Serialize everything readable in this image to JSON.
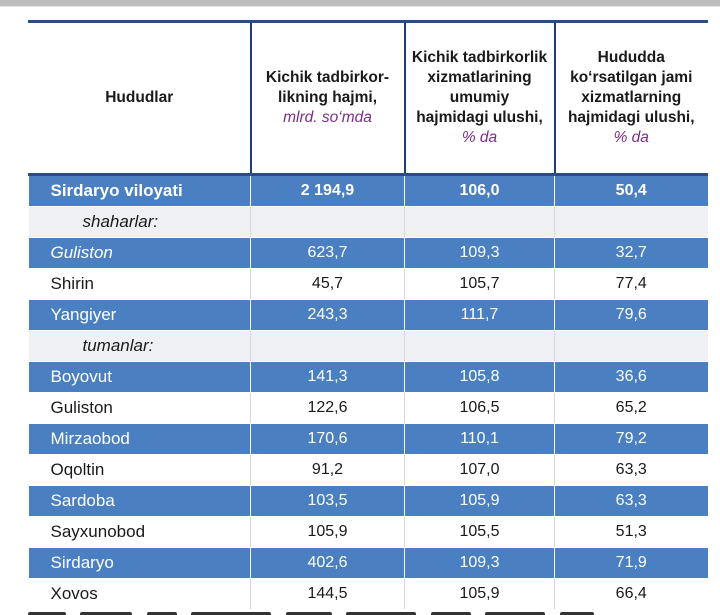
{
  "table": {
    "headers": [
      {
        "label": "Hududlar",
        "unit": ""
      },
      {
        "label": "Kichik tadbirkor-likning hajmi,",
        "unit": "mlrd. so‘mda"
      },
      {
        "label": "Kichik tadbirkorlik xizmatlarining umumiy hajmidagi ulushi,",
        "unit": "% da"
      },
      {
        "label": "Hududda ko‘rsatilgan jami xizmatlarning hajmidagi ulushi,",
        "unit": "% da"
      }
    ],
    "total": {
      "name": "Sirdaryo viloyati",
      "v1": "2 194,9",
      "v2": "106,0",
      "v3": "50,4"
    },
    "cities_label": "shaharlar:",
    "cities": [
      {
        "name": "Guliston",
        "v1": "623,7",
        "v2": "109,3",
        "v3": "32,7"
      },
      {
        "name": "Shirin",
        "v1": "45,7",
        "v2": "105,7",
        "v3": "77,4"
      },
      {
        "name": "Yangiyer",
        "v1": "243,3",
        "v2": "111,7",
        "v3": "79,6"
      }
    ],
    "districts_label": "tumanlar:",
    "districts": [
      {
        "name": "Boyovut",
        "v1": "141,3",
        "v2": "105,8",
        "v3": "36,6"
      },
      {
        "name": "Guliston",
        "v1": "122,6",
        "v2": "106,5",
        "v3": "65,2"
      },
      {
        "name": "Mirzaobod",
        "v1": "170,6",
        "v2": "110,1",
        "v3": "79,2"
      },
      {
        "name": "Oqoltin",
        "v1": "91,2",
        "v2": "107,0",
        "v3": "63,3"
      },
      {
        "name": "Sardoba",
        "v1": "103,5",
        "v2": "105,9",
        "v3": "63,3"
      },
      {
        "name": "Sayxunobod",
        "v1": "105,9",
        "v2": "105,5",
        "v3": "51,3"
      },
      {
        "name": "Sirdaryo",
        "v1": "402,6",
        "v2": "109,3",
        "v3": "71,9"
      },
      {
        "name": "Xovos",
        "v1": "144,5",
        "v2": "105,9",
        "v3": "66,4"
      }
    ]
  },
  "colors": {
    "band_blue": "#4a7fc1",
    "band_grey": "#eef0f3",
    "header_border": "#2a4d80",
    "unit_purple": "#7a2e8a"
  }
}
